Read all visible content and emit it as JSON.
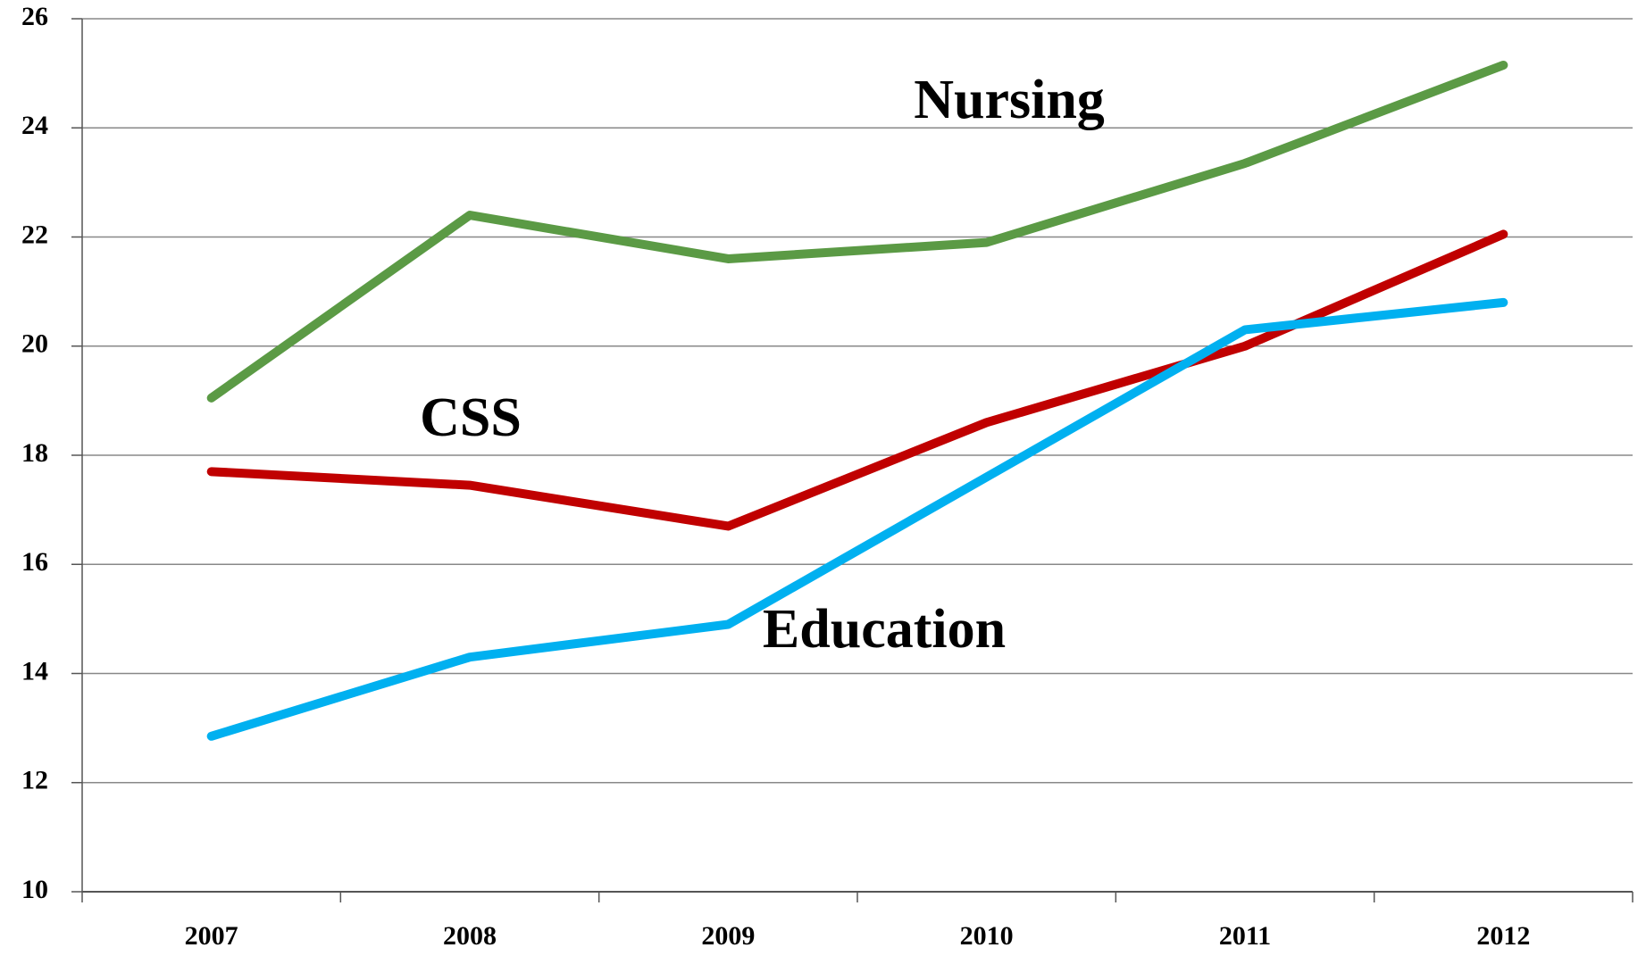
{
  "chart_data": {
    "type": "line",
    "categories": [
      "2007",
      "2008",
      "2009",
      "2010",
      "2011",
      "2012"
    ],
    "series": [
      {
        "name": "Nursing",
        "color": "#5b9a45",
        "values": [
          19.05,
          22.4,
          21.6,
          21.9,
          23.35,
          25.15
        ]
      },
      {
        "name": "CSS",
        "color": "#c00000",
        "values": [
          17.7,
          17.45,
          16.7,
          18.6,
          20.0,
          22.05
        ]
      },
      {
        "name": "Education",
        "color": "#00b0f0",
        "values": [
          12.85,
          14.3,
          14.9,
          17.6,
          20.3,
          20.8
        ]
      }
    ],
    "ylim": [
      10,
      26
    ],
    "yticks": [
      10,
      12,
      14,
      16,
      18,
      20,
      22,
      24,
      26
    ],
    "grid": true
  }
}
